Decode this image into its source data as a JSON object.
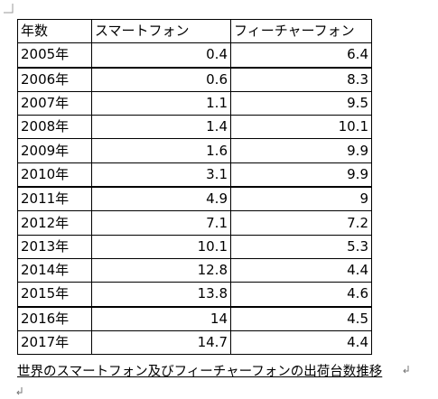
{
  "table": {
    "header": [
      "年数",
      "スマートフォン",
      "フィーチャーフォン"
    ],
    "rows": [
      [
        "2005年",
        0.4,
        6.4
      ],
      [
        "2006年",
        0.6,
        8.3
      ],
      [
        "2007年",
        1.1,
        9.5
      ],
      [
        "2008年",
        1.4,
        10.1
      ],
      [
        "2009年",
        1.6,
        9.9
      ],
      [
        "2010年",
        3.1,
        9.9
      ],
      [
        "2011年",
        4.9,
        9
      ],
      [
        "2012年",
        7.1,
        7.2
      ],
      [
        "2013年",
        10.1,
        5.3
      ],
      [
        "2014年",
        12.8,
        4.4
      ],
      [
        "2015年",
        13.8,
        4.6
      ],
      [
        "2016年",
        14,
        4.5
      ],
      [
        "2017年",
        14.7,
        4.4
      ]
    ]
  },
  "caption": "世界のスマートフォン及びフィーチャーフォンの出荷台数推移"
}
